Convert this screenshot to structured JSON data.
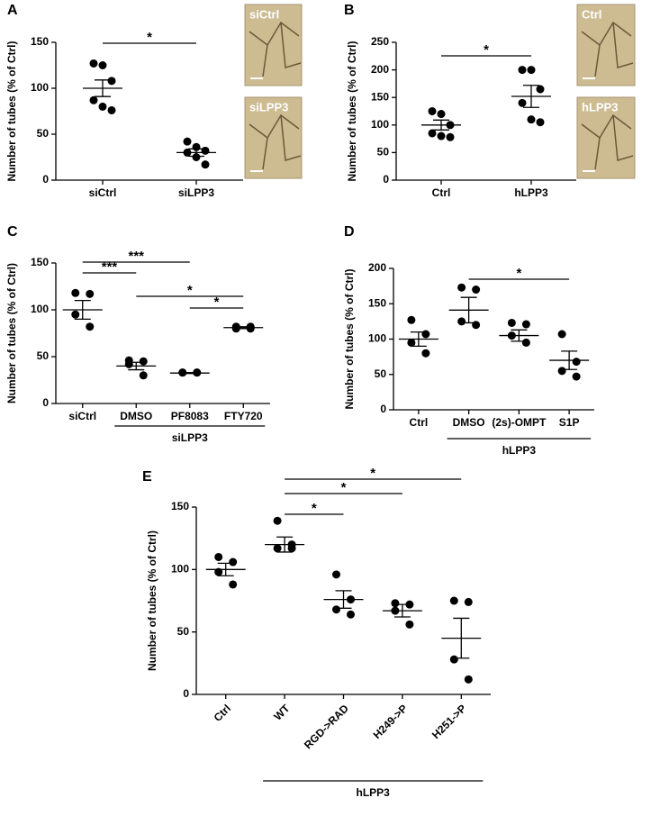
{
  "chart_data": [
    {
      "type": "dot",
      "panel": "A",
      "ylabel": "Number of tubes (% of Ctrl)",
      "categories": [
        "siCtrl",
        "siLPP3"
      ],
      "points": [
        [
          127,
          125,
          108,
          87,
          80,
          76
        ],
        [
          42,
          36,
          32,
          30,
          25,
          17
        ]
      ],
      "mean": [
        100,
        30
      ],
      "sem": [
        9,
        4
      ],
      "ylim": [
        0,
        150
      ],
      "yticks": [
        0,
        50,
        100,
        150
      ],
      "brackets": [
        {
          "from": "siCtrl",
          "to": "siLPP3",
          "label": "*"
        }
      ],
      "images": [
        "siCtrl",
        "siLPP3"
      ]
    },
    {
      "type": "dot",
      "panel": "B",
      "ylabel": "Number of tubes (% of Ctrl)",
      "categories": [
        "Ctrl",
        "hLPP3"
      ],
      "points": [
        [
          125,
          120,
          100,
          85,
          80,
          78
        ],
        [
          200,
          200,
          165,
          140,
          110,
          105
        ]
      ],
      "mean": [
        100,
        152
      ],
      "sem": [
        9,
        20
      ],
      "ylim": [
        0,
        250
      ],
      "yticks": [
        0,
        50,
        100,
        150,
        200,
        250
      ],
      "brackets": [
        {
          "from": "Ctrl",
          "to": "hLPP3",
          "label": "*"
        }
      ],
      "images": [
        "Ctrl",
        "hLPP3"
      ]
    },
    {
      "type": "dot",
      "panel": "C",
      "ylabel": "Number of tubes (% of Ctrl)",
      "categories": [
        "siCtrl",
        "DMSO",
        "PF8083",
        "FTY720"
      ],
      "points": [
        [
          118,
          117,
          95,
          82
        ],
        [
          46,
          45,
          42,
          30
        ],
        [
          33,
          33,
          33,
          33
        ],
        [
          82,
          82,
          80,
          80
        ]
      ],
      "mean": [
        100,
        40,
        32.5,
        81
      ],
      "sem": [
        10,
        4,
        0.5,
        1
      ],
      "ylim": [
        0,
        150
      ],
      "yticks": [
        0,
        50,
        100,
        150
      ],
      "brackets": [
        {
          "from": "siCtrl",
          "to": "PF8083",
          "label": "***"
        },
        {
          "from": "siCtrl",
          "to": "DMSO",
          "label": "***"
        },
        {
          "from": "DMSO",
          "to": "FTY720",
          "label": "*"
        },
        {
          "from": "PF8083",
          "to": "FTY720",
          "label": "*"
        }
      ],
      "group": {
        "label": "siLPP3",
        "categories": [
          "DMSO",
          "PF8083",
          "FTY720"
        ]
      }
    },
    {
      "type": "dot",
      "panel": "D",
      "ylabel": "Number of tubes (% of Ctrl)",
      "categories": [
        "Ctrl",
        "DMSO",
        "(2s)-OMPT",
        "S1P"
      ],
      "points": [
        [
          127,
          107,
          95,
          80
        ],
        [
          173,
          170,
          125,
          120
        ],
        [
          123,
          121,
          105,
          95
        ],
        [
          107,
          68,
          55,
          47
        ]
      ],
      "mean": [
        100,
        141,
        105,
        70
      ],
      "sem": [
        10,
        18,
        8,
        13
      ],
      "ylim": [
        0,
        200
      ],
      "yticks": [
        0,
        50,
        100,
        150,
        200
      ],
      "brackets": [
        {
          "from": "DMSO",
          "to": "S1P",
          "label": "*"
        }
      ],
      "group": {
        "label": "hLPP3",
        "categories": [
          "DMSO",
          "(2s)-OMPT",
          "S1P"
        ]
      }
    },
    {
      "type": "dot",
      "panel": "E",
      "ylabel": "Number of tubes (% of Ctrl)",
      "categories": [
        "Ctrl",
        "WT",
        "RGD->RAD",
        "H249->P",
        "H251->P"
      ],
      "points": [
        [
          110,
          106,
          98,
          88
        ],
        [
          139,
          120,
          117,
          117
        ],
        [
          96,
          76,
          68,
          64
        ],
        [
          73,
          72,
          67,
          56
        ],
        [
          75,
          74,
          28,
          12
        ]
      ],
      "mean": [
        100,
        120,
        76,
        67,
        45
      ],
      "sem": [
        5,
        6,
        7,
        5,
        16
      ],
      "ylim": [
        0,
        150
      ],
      "yticks": [
        0,
        50,
        100,
        150
      ],
      "brackets": [
        {
          "from": "WT",
          "to": "H251->P",
          "label": "*"
        },
        {
          "from": "WT",
          "to": "H249->P",
          "label": "*"
        },
        {
          "from": "WT",
          "to": "RGD->RAD",
          "label": "*"
        }
      ],
      "group": {
        "label": "hLPP3",
        "categories": [
          "WT",
          "RGD->RAD",
          "H249->P",
          "H251->P"
        ]
      }
    }
  ]
}
